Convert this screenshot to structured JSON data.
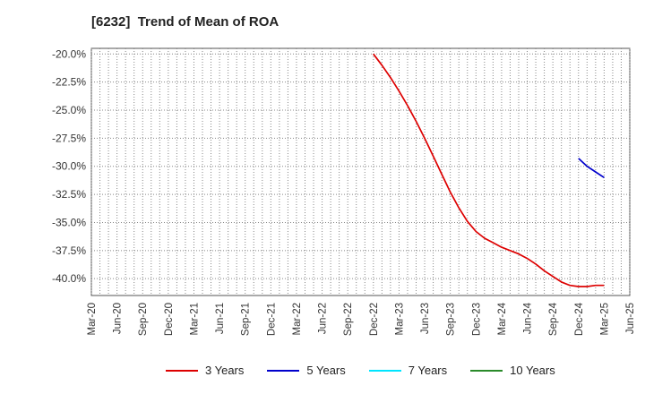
{
  "title": "[6232]  Trend of Mean of ROA",
  "colors": {
    "3 Years": "#dd0000",
    "5 Years": "#0000cc",
    "7 Years": "#00e5ff",
    "10 Years": "#2a8a2a"
  },
  "chart_data": {
    "type": "line",
    "title": "[6232]  Trend of Mean of ROA",
    "xlabel": "",
    "ylabel": "",
    "x_ticks": [
      "Mar-20",
      "Jun-20",
      "Sep-20",
      "Dec-20",
      "Mar-21",
      "Jun-21",
      "Sep-21",
      "Dec-21",
      "Mar-22",
      "Jun-22",
      "Sep-22",
      "Dec-22",
      "Mar-23",
      "Jun-23",
      "Sep-23",
      "Dec-23",
      "Mar-24",
      "Jun-24",
      "Sep-24",
      "Dec-24",
      "Mar-25",
      "Jun-25"
    ],
    "y_ticks": [
      "-20.0%",
      "-22.5%",
      "-25.0%",
      "-27.5%",
      "-30.0%",
      "-32.5%",
      "-35.0%",
      "-37.5%",
      "-40.0%"
    ],
    "ylim": [
      -41.5,
      -19.5
    ],
    "grid": true,
    "legend_position": "bottom",
    "series": [
      {
        "name": "3 Years",
        "x": [
          "Dec-22",
          "Jan-23",
          "Feb-23",
          "Mar-23",
          "Apr-23",
          "May-23",
          "Jun-23",
          "Jul-23",
          "Aug-23",
          "Sep-23",
          "Oct-23",
          "Nov-23",
          "Dec-23",
          "Jan-24",
          "Feb-24",
          "Mar-24",
          "Apr-24",
          "May-24",
          "Jun-24",
          "Jul-24",
          "Aug-24",
          "Sep-24",
          "Oct-24",
          "Nov-24",
          "Dec-24",
          "Jan-25",
          "Feb-25",
          "Mar-25"
        ],
        "values": [
          -20.0,
          -21.0,
          -22.1,
          -23.3,
          -24.6,
          -26.0,
          -27.5,
          -29.1,
          -30.7,
          -32.3,
          -33.7,
          -34.9,
          -35.8,
          -36.4,
          -36.8,
          -37.2,
          -37.5,
          -37.8,
          -38.2,
          -38.7,
          -39.3,
          -39.8,
          -40.3,
          -40.6,
          -40.7,
          -40.7,
          -40.6,
          -40.6
        ]
      },
      {
        "name": "5 Years",
        "x": [
          "Dec-24",
          "Jan-25",
          "Feb-25",
          "Mar-25"
        ],
        "values": [
          -29.3,
          -30.0,
          -30.5,
          -31.0
        ]
      },
      {
        "name": "7 Years",
        "x": [],
        "values": []
      },
      {
        "name": "10 Years",
        "x": [],
        "values": []
      }
    ]
  }
}
